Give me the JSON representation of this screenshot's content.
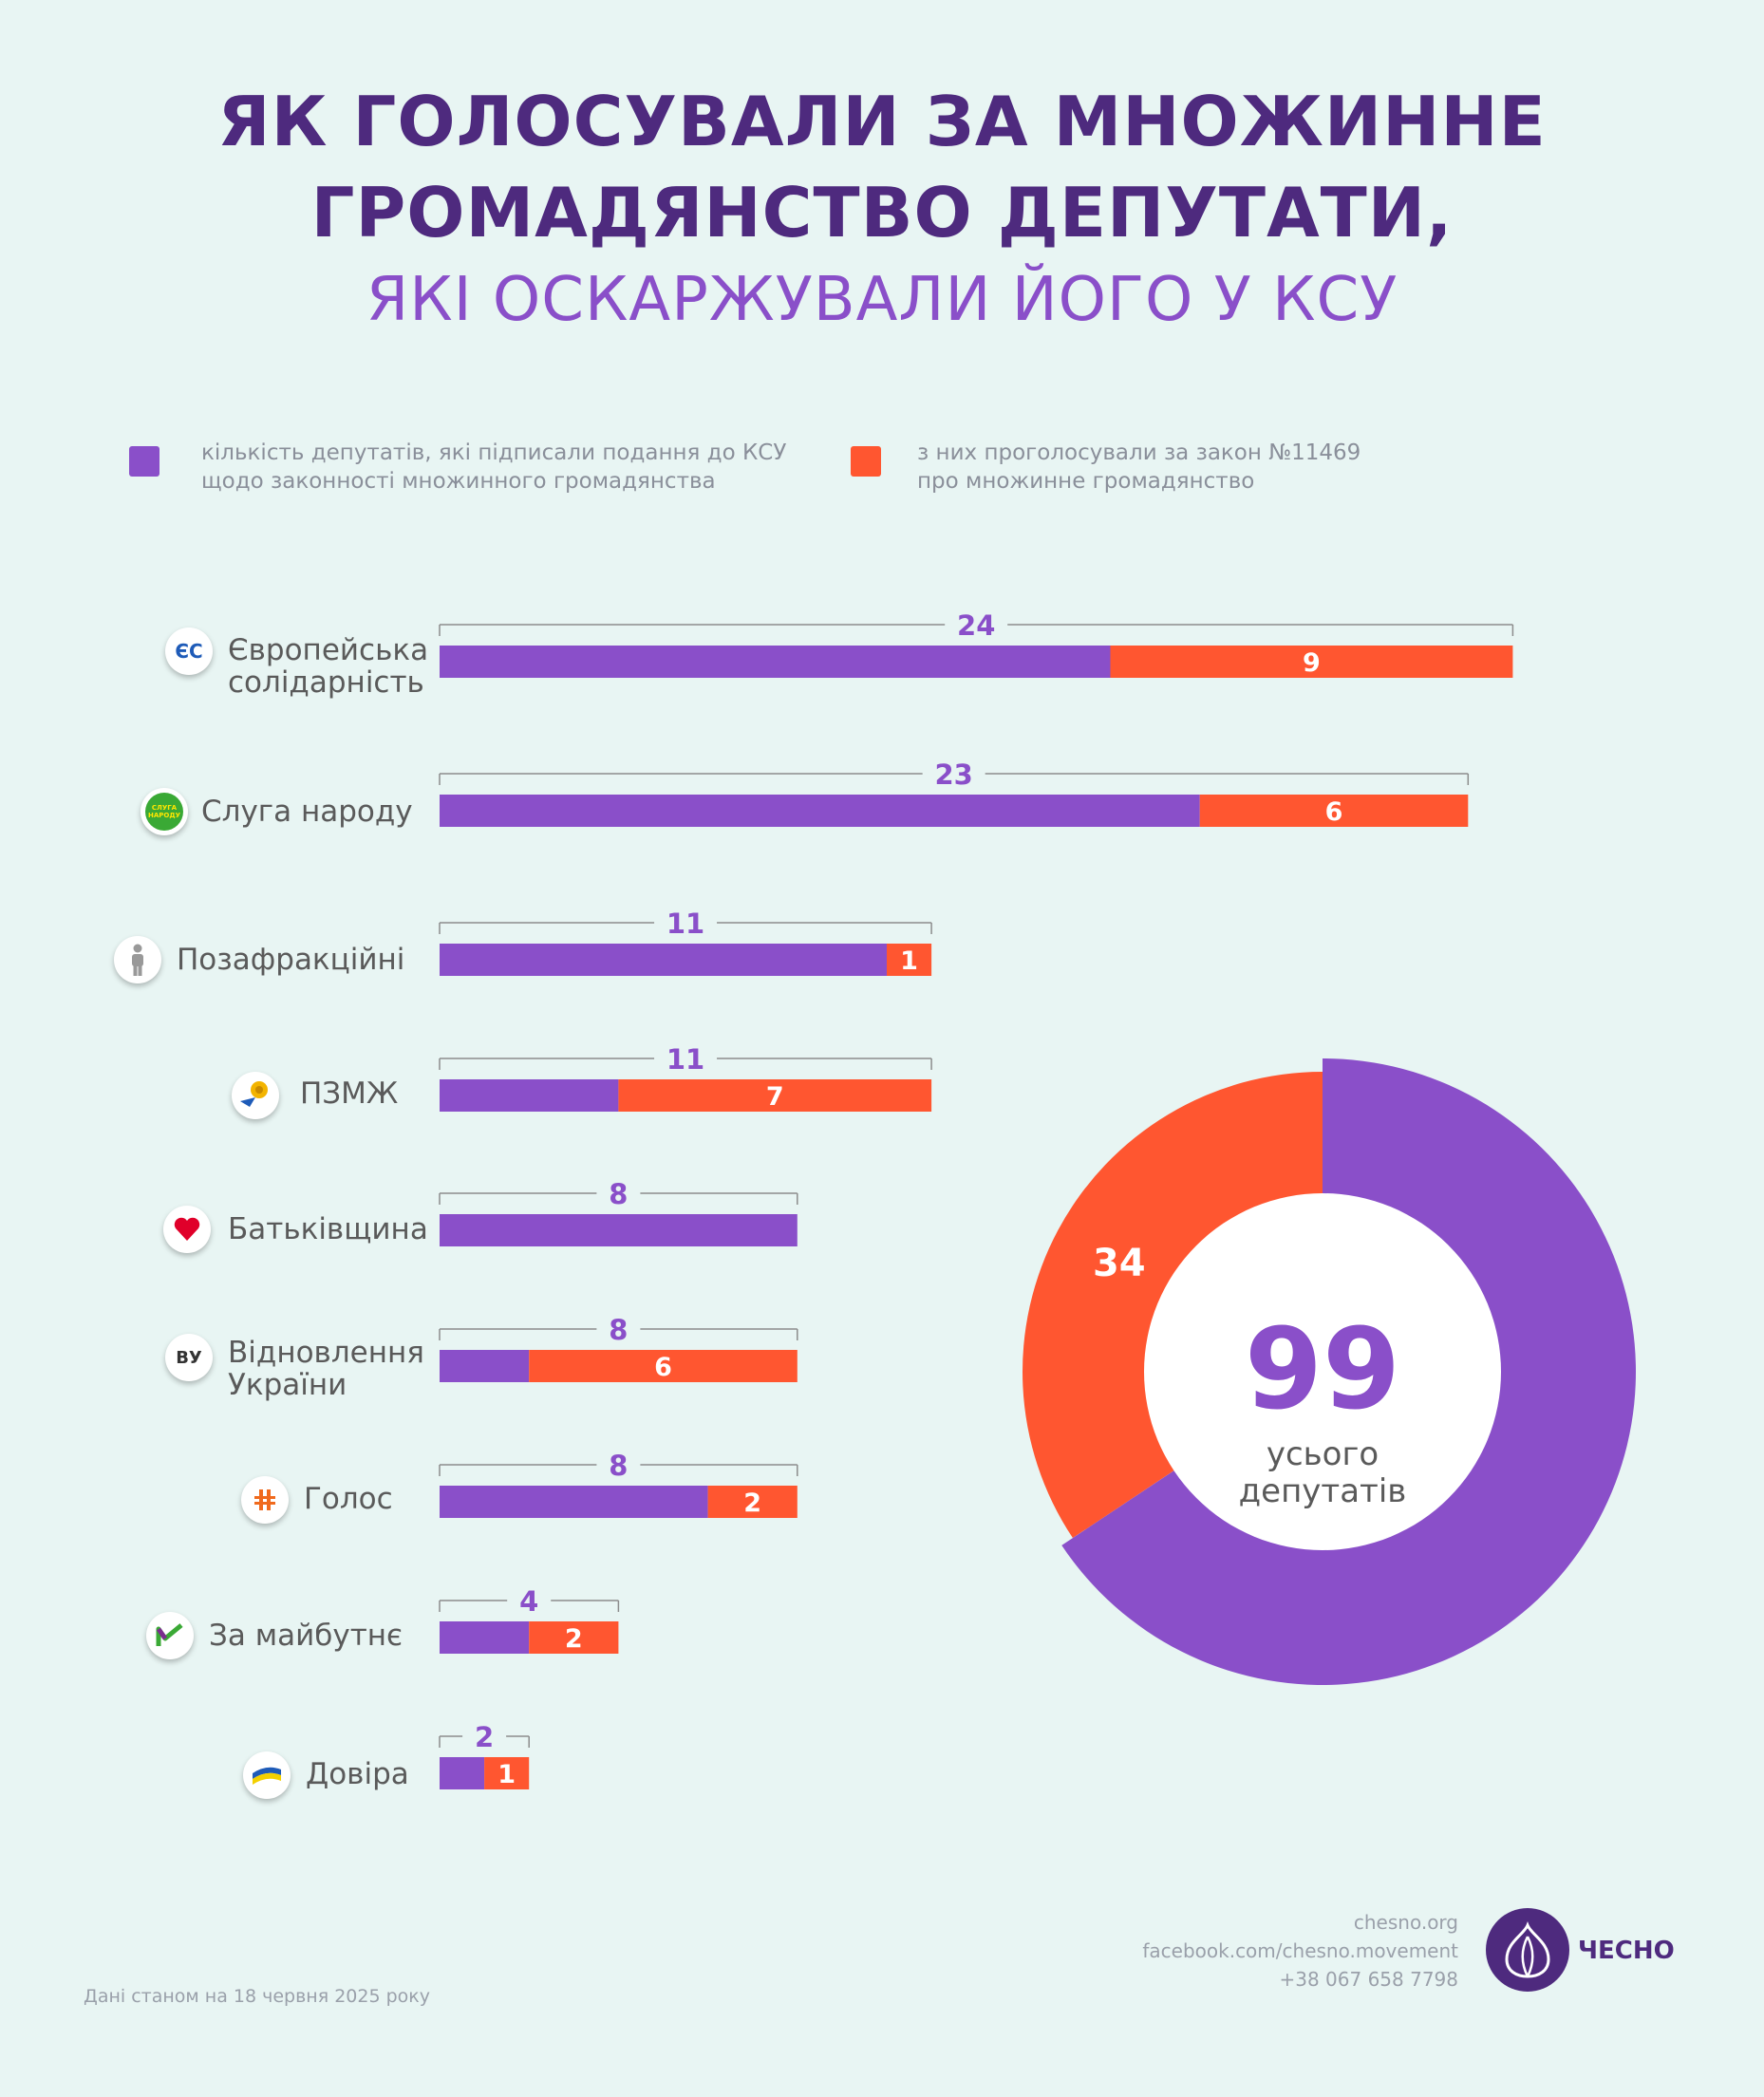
{
  "header": {
    "title_line1": "ЯК ГОЛОСУВАЛИ ЗА МНОЖИННЕ",
    "title_line2": "ГРОМАДЯНСТВО ДЕПУТАТИ,",
    "title_line3": "ЯКІ ОСКАРЖУВАЛИ ЙОГО У КСУ"
  },
  "legend": {
    "signed_line1": "кількість депутатів, які підписали подання до КСУ",
    "signed_line2": "щодо законності множинного громадянства",
    "voted_line1": "з них проголосували за закон №11469",
    "voted_line2": "про множинне громадянство"
  },
  "colors": {
    "signed": "#8a4fc9",
    "voted": "#ff5630",
    "title": "#4e2a7e",
    "background": "#e8f5f3"
  },
  "chart_data": [
    {
      "type": "bar",
      "orientation": "horizontal",
      "categories": [
        "Європейська солідарність",
        "Слуга народу",
        "Позафракційні",
        "ПЗМЖ",
        "Батьківщина",
        "Відновлення України",
        "Голос",
        "За майбутнє",
        "Довіра"
      ],
      "series": [
        {
          "name": "кількість депутатів, які підписали подання до КСУ щодо законності множинного громадянства",
          "values": [
            24,
            23,
            11,
            11,
            8,
            8,
            8,
            4,
            2
          ]
        },
        {
          "name": "з них проголосували за закон №11469 про множинне громадянство",
          "values": [
            9,
            6,
            1,
            7,
            0,
            6,
            2,
            2,
            1
          ]
        }
      ]
    },
    {
      "type": "pie",
      "variant": "donut",
      "slices": [
        {
          "label": "34",
          "value": 34
        },
        {
          "label": "",
          "value": 65
        }
      ],
      "center_value": "99",
      "center_label_line1": "усього",
      "center_label_line2": "депутатів"
    }
  ],
  "parties": [
    {
      "label_line1": "Європейська",
      "label_line2": "солідарність",
      "icon": "eu-solidarity-logo",
      "icon_text": "ЄС"
    },
    {
      "label_line1": "Слуга народу",
      "label_line2": "",
      "icon": "servant-of-the-people-logo",
      "icon_text": "СЛУГА НАРОДУ"
    },
    {
      "label_line1": "Позафракційні",
      "label_line2": "",
      "icon": "person-icon",
      "icon_text": ""
    },
    {
      "label_line1": "ПЗМЖ",
      "label_line2": "",
      "icon": "pzmzh-logo",
      "icon_text": ""
    },
    {
      "label_line1": "Батьківщина",
      "label_line2": "",
      "icon": "heart-logo",
      "icon_text": ""
    },
    {
      "label_line1": "Відновлення",
      "label_line2": "України",
      "icon": "vu-logo",
      "icon_text": "ВУ"
    },
    {
      "label_line1": "Голос",
      "label_line2": "",
      "icon": "holos-logo",
      "icon_text": ""
    },
    {
      "label_line1": "За майбутнє",
      "label_line2": "",
      "icon": "za-maibutne-logo",
      "icon_text": ""
    },
    {
      "label_line1": "Довіра",
      "label_line2": "",
      "icon": "dovira-logo",
      "icon_text": ""
    }
  ],
  "footer": {
    "site": "chesno.org",
    "facebook": "facebook.com/chesno.movement",
    "phone": "+38 067 658 7798",
    "brand": "ЧЕСНО",
    "date_note": "Дані станом на 18 червня 2025 року"
  }
}
